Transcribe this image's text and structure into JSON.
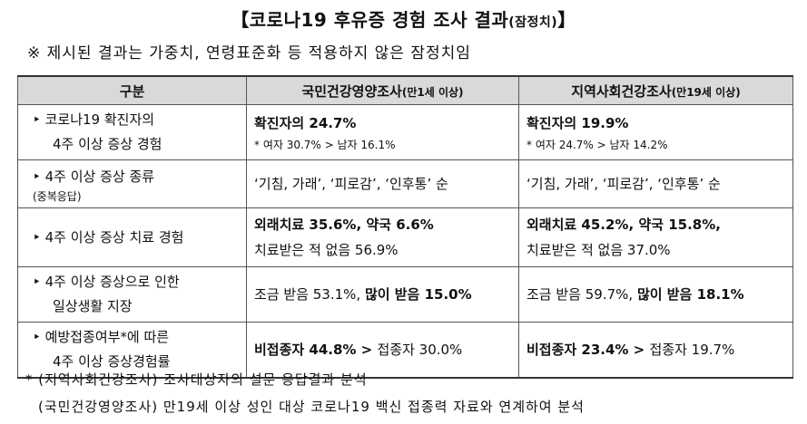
{
  "title": {
    "main": "【코로나19 후유증 경험 조사 결과",
    "small": "(잠정치)",
    "end": "】"
  },
  "note": "※ 제시된 결과는 가중치, 연령표준화 등 적용하지 않은 잠정치임",
  "table": {
    "headers": {
      "col1": "구분",
      "col2": {
        "main": "국민건강영양조사",
        "sub": "(만1세 이상)"
      },
      "col3": {
        "main": "지역사회건강조사",
        "sub": "(만19세 이상)"
      }
    },
    "rows": [
      {
        "label1": "‣ 코로나19 확진자의",
        "label2": "4주 이상 증상 경험",
        "c2_main": "확진자의 24.7%",
        "c2_sub": "* 여자 30.7% > 남자 16.1%",
        "c3_main": "확진자의 19.9%",
        "c3_sub": "* 여자 24.7% > 남자 14.2%"
      },
      {
        "label1": "‣ 4주 이상 증상 종류",
        "label_small": "(중복응답)",
        "c2": "‘기침, 가래’, ‘피로감’, ‘인후통’ 순",
        "c3": "‘기침, 가래’, ‘피로감’, ‘인후통’ 순"
      },
      {
        "label1": "‣ 4주 이상 증상 치료 경험",
        "c2_line1": "외래치료 35.6%, 약국 6.6%",
        "c2_line2": "치료받은 적 없음 56.9%",
        "c3_line1": "외래치료 45.2%, 약국 15.8%,",
        "c3_line2": "치료받은 적 없음 37.0%"
      },
      {
        "label1": "‣ 4주 이상 증상으로 인한",
        "label2": "일상생활 지장",
        "c2_a": "조금 받음 53.1%, ",
        "c2_b": "많이 받음 15.0%",
        "c3_a": "조금 받음 59.7%, ",
        "c3_b": "많이 받음 18.1%"
      },
      {
        "label1": "‣ 예방접종여부*에 따른",
        "label2": "4주 이상 증상경험률",
        "c2_a": "비접종자 44.8% > ",
        "c2_b": "접종자 30.0%",
        "c3_a": "비접종자 23.4% > ",
        "c3_b": "접종자 19.7%"
      }
    ]
  },
  "footnotes": [
    "* (지역사회건강조사) 조사대상자의 설문 응답결과 분석",
    "(국민건강영양조사) 만19세 이상 성인 대상 코로나19 백신 접종력 자료와 연계하여 분석"
  ]
}
